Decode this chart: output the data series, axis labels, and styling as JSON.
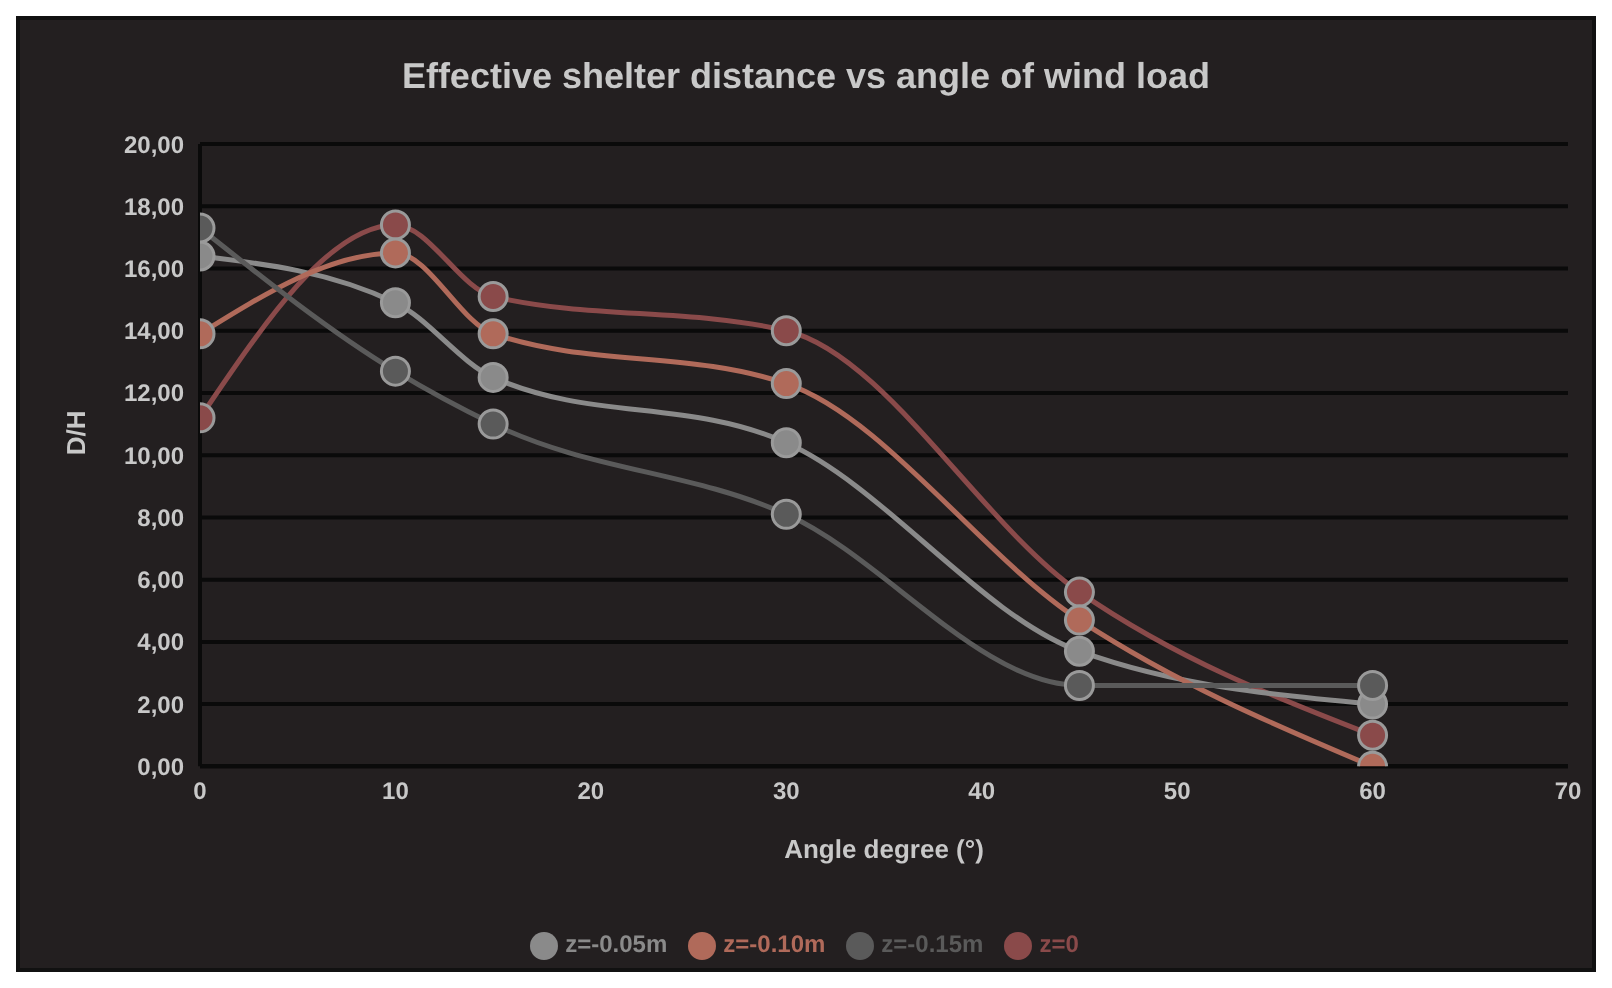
{
  "chart_data": {
    "type": "line",
    "title": "Effective shelter distance vs angle of wind load",
    "xlabel": "Angle degree (°)",
    "ylabel": "D/H",
    "x": [
      0,
      10,
      15,
      30,
      45,
      60
    ],
    "series": [
      {
        "name": "z=0",
        "color": "#8a4a4a",
        "values": [
          11.2,
          17.4,
          15.1,
          14.0,
          5.6,
          1.0
        ]
      },
      {
        "name": "z=-0.05m",
        "color": "#8a8a8a",
        "values": [
          16.4,
          14.9,
          12.5,
          10.4,
          3.7,
          2.0
        ]
      },
      {
        "name": "z=-0.10m",
        "color": "#b06a5a",
        "values": [
          13.9,
          16.5,
          13.9,
          12.3,
          4.7,
          0.0
        ]
      },
      {
        "name": "z=-0.15m",
        "color": "#5a5a5a",
        "values": [
          17.3,
          12.7,
          11.0,
          8.1,
          2.6,
          2.6
        ]
      }
    ],
    "xlim": [
      0,
      70
    ],
    "xticks": [
      0,
      10,
      20,
      30,
      40,
      50,
      60,
      70
    ],
    "ylim": [
      0,
      20
    ],
    "yticks": [
      {
        "value": 0,
        "label": "0,00"
      },
      {
        "value": 2,
        "label": "2,00"
      },
      {
        "value": 4,
        "label": "4,00"
      },
      {
        "value": 6,
        "label": "6,00"
      },
      {
        "value": 8,
        "label": "8,00"
      },
      {
        "value": 10,
        "label": "10,00"
      },
      {
        "value": 12,
        "label": "12,00"
      },
      {
        "value": 14,
        "label": "14,00"
      },
      {
        "value": 16,
        "label": "16,00"
      },
      {
        "value": 18,
        "label": "18,00"
      },
      {
        "value": 20,
        "label": "20,00"
      }
    ],
    "grid": "y",
    "legend": "bottom",
    "marker": "circle",
    "line_style": "solid"
  }
}
